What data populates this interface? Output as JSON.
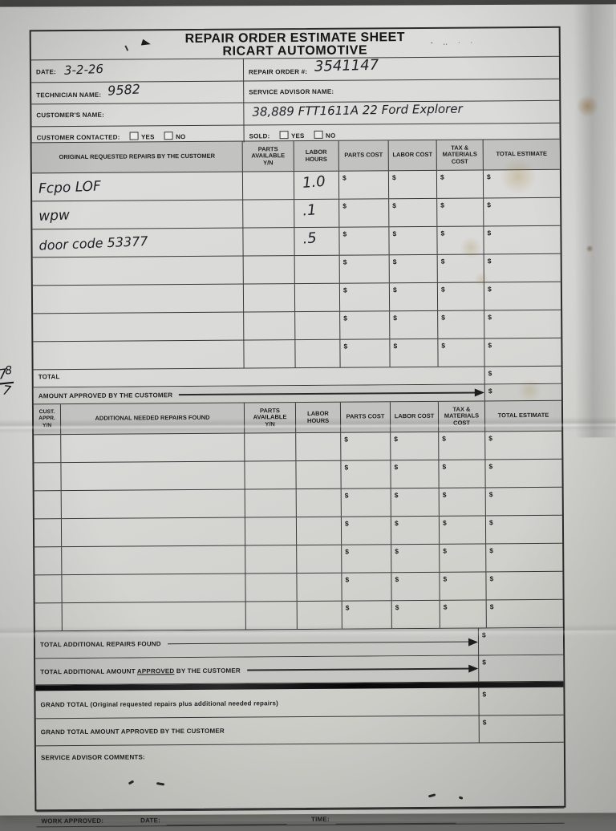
{
  "currency": "$",
  "header": {
    "title_line1": "REPAIR ORDER ESTIMATE SHEET",
    "title_line2": "RICART AUTOMOTIVE"
  },
  "info": {
    "date_label": "DATE:",
    "date_value": "3-2-26",
    "repair_order_label": "REPAIR ORDER #:",
    "repair_order_value": "3541147",
    "technician_label": "TECHNICIAN NAME:",
    "technician_value": "9582",
    "service_advisor_label": "SERVICE ADVISOR NAME:",
    "customer_name_label": "CUSTOMER'S NAME:",
    "vehicle_note": "38,889  FTT1611A    22 Ford Explorer",
    "customer_contacted_label": "CUSTOMER CONTACTED:",
    "sold_label": "SOLD:",
    "yes_label": "YES",
    "no_label": "NO"
  },
  "table1": {
    "columns": [
      "ORIGINAL REQUESTED REPAIRS BY THE CUSTOMER",
      "PARTS\nAVAILABLE\nY/N",
      "LABOR\nHOURS",
      "PARTS COST",
      "LABOR COST",
      "TAX &\nMATERIALS\nCOST",
      "TOTAL ESTIMATE"
    ],
    "rows": [
      {
        "repair": "Fcpo LOF",
        "labor_hours": "1.0"
      },
      {
        "repair": "wpw",
        "labor_hours": ".1"
      },
      {
        "repair": "door code 53377",
        "labor_hours": ".5"
      },
      {
        "repair": "",
        "labor_hours": ""
      },
      {
        "repair": "",
        "labor_hours": ""
      },
      {
        "repair": "",
        "labor_hours": ""
      },
      {
        "repair": "",
        "labor_hours": ""
      }
    ],
    "total_label": "TOTAL",
    "amount_approved_label": "AMOUNT APPROVED BY THE CUSTOMER"
  },
  "table2": {
    "columns": [
      "CUST.\nAPPR.\nY/N",
      "ADDITIONAL NEEDED REPAIRS FOUND",
      "PARTS\nAVAILABLE\nY/N",
      "LABOR\nHOURS",
      "PARTS COST",
      "LABOR COST",
      "TAX &\nMATERIALS\nCOST",
      "TOTAL ESTIMATE"
    ],
    "row_count": 7
  },
  "summary": {
    "total_additional_label": "TOTAL ADDITIONAL REPAIRS FOUND",
    "total_additional_approved_pre": "TOTAL ADDITIONAL AMOUNT ",
    "total_additional_approved_underlined": "APPROVED",
    "total_additional_approved_post": " BY THE CUSTOMER",
    "grand_total_label": "GRAND TOTAL (Original requested repairs plus additional needed repairs)",
    "grand_total_approved_label": "GRAND TOTAL AMOUNT APPROVED BY THE CUSTOMER",
    "comments_label": "SERVICE ADVISOR COMMENTS:",
    "work_approved_label": "WORK APPROVED:",
    "work_date_label": "DATE:",
    "work_time_label": "TIME:"
  },
  "margin_note": {
    "numerator_main": "7",
    "numerator_sup": "8",
    "denominator": "7"
  }
}
